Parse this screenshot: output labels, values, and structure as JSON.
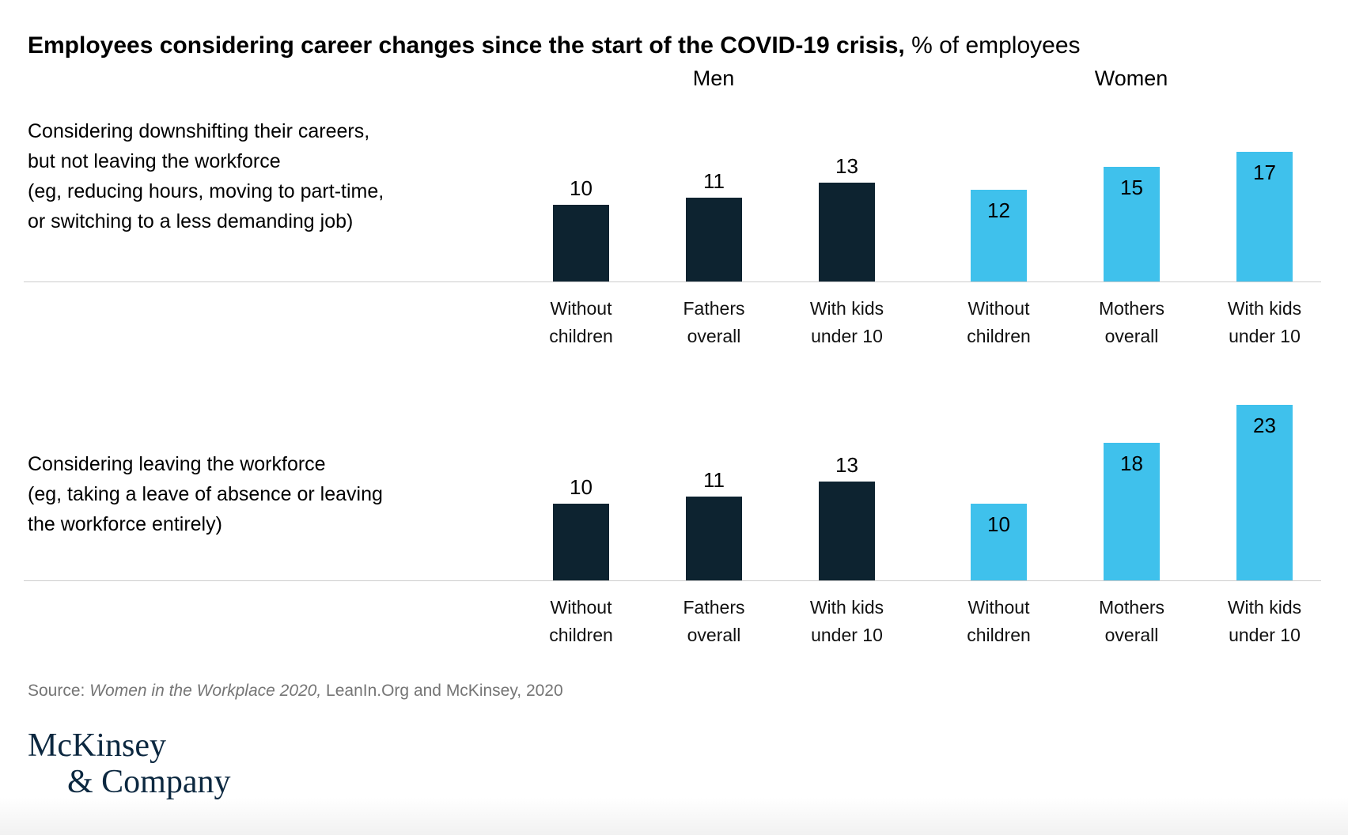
{
  "title": {
    "main": "Employees considering career changes since the start of the COVID-19 crisis,",
    "suffix": " % of employees"
  },
  "group_headers": [
    "Men",
    "Women"
  ],
  "rows": [
    {
      "label_main_lines": [
        "Considering downshifting their careers,",
        "but not leaving the workforce"
      ],
      "label_sub_lines": [
        "(eg, reducing hours, moving to part-time,",
        "or switching to a less demanding job)"
      ]
    },
    {
      "label_main_lines": [
        "Considering leaving the workforce"
      ],
      "label_sub_lines": [
        "(eg, taking a leave of absence or leaving",
        "the workforce entirely)"
      ]
    }
  ],
  "category_labels": [
    [
      "Without",
      "children"
    ],
    [
      "Fathers",
      "overall"
    ],
    [
      "With kids",
      "under 10"
    ],
    [
      "Without",
      "children"
    ],
    [
      "Mothers",
      "overall"
    ],
    [
      "With kids",
      "under 10"
    ]
  ],
  "chart_data": [
    {
      "type": "bar",
      "title": "Considering downshifting their careers, but not leaving the workforce",
      "subtitle": "(eg, reducing hours, moving to part-time, or switching to a less demanding job)",
      "unit": "% of employees",
      "ylim": [
        0,
        25
      ],
      "value_labels": true,
      "series": [
        {
          "name": "Men",
          "categories": [
            "Without children",
            "Fathers overall",
            "With kids under 10"
          ],
          "values": [
            10,
            11,
            13
          ]
        },
        {
          "name": "Women",
          "categories": [
            "Without children",
            "Mothers overall",
            "With kids under 10"
          ],
          "values": [
            12,
            15,
            17
          ]
        }
      ]
    },
    {
      "type": "bar",
      "title": "Considering leaving the workforce",
      "subtitle": "(eg, taking a leave of absence or leaving the workforce entirely)",
      "unit": "% of employees",
      "ylim": [
        0,
        25
      ],
      "value_labels": true,
      "series": [
        {
          "name": "Men",
          "categories": [
            "Without children",
            "Fathers overall",
            "With kids under 10"
          ],
          "values": [
            10,
            11,
            13
          ]
        },
        {
          "name": "Women",
          "categories": [
            "Without children",
            "Mothers overall",
            "With kids under 10"
          ],
          "values": [
            10,
            18,
            23
          ]
        }
      ]
    }
  ],
  "colors": {
    "men_bar": "#0d2330",
    "women_bar": "#3fc1ec",
    "baseline": "#cccccc",
    "source_text": "#757575",
    "logo_navy": "#0c2840",
    "title_text": "#000000"
  },
  "source": {
    "prefix": "Source: ",
    "italic": "Women in the Workplace 2020,",
    "rest": " LeanIn.Org and McKinsey, 2020"
  },
  "logo": {
    "line1": "McKinsey",
    "line2": "& Company"
  }
}
